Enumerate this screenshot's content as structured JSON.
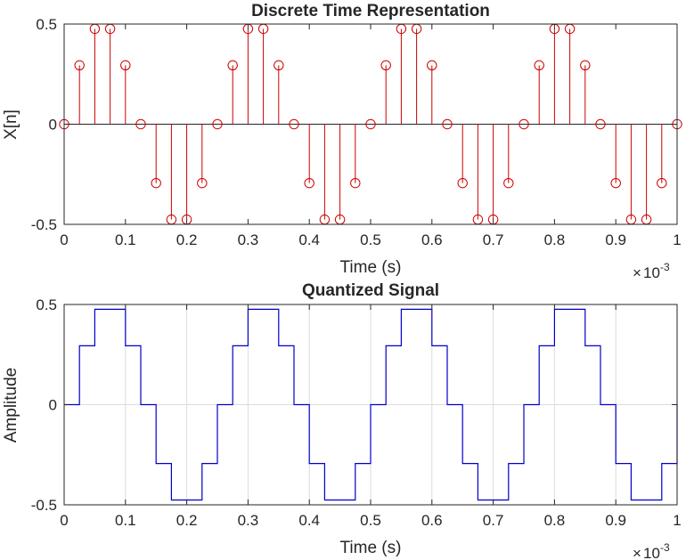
{
  "chart_data": [
    {
      "type": "stem",
      "title": "Discrete Time Representation",
      "xlabel": "Time (s)",
      "ylabel": "X[n]",
      "x_exponent": "10",
      "x_exponent_power": "-3",
      "x_exponent_prefix": "×",
      "xlim": [
        0,
        1
      ],
      "ylim": [
        -0.5,
        0.5
      ],
      "xticks": [
        "0",
        "0.1",
        "0.2",
        "0.3",
        "0.4",
        "0.5",
        "0.6",
        "0.7",
        "0.8",
        "0.9",
        "1"
      ],
      "yticks": [
        "-0.5",
        "0",
        "0.5"
      ],
      "grid": false,
      "color": "#cc0000",
      "x": [
        0,
        0.025,
        0.05,
        0.075,
        0.1,
        0.125,
        0.15,
        0.175,
        0.2,
        0.225,
        0.25,
        0.275,
        0.3,
        0.325,
        0.35,
        0.375,
        0.4,
        0.425,
        0.45,
        0.475,
        0.5,
        0.525,
        0.55,
        0.575,
        0.6,
        0.625,
        0.65,
        0.675,
        0.7,
        0.725,
        0.75,
        0.775,
        0.8,
        0.825,
        0.85,
        0.875,
        0.9,
        0.925,
        0.95,
        0.975,
        1.0
      ],
      "values": [
        0,
        0.294,
        0.476,
        0.476,
        0.294,
        0,
        -0.294,
        -0.476,
        -0.476,
        -0.294,
        0,
        0.294,
        0.476,
        0.476,
        0.294,
        0,
        -0.294,
        -0.476,
        -0.476,
        -0.294,
        0,
        0.294,
        0.476,
        0.476,
        0.294,
        0,
        -0.294,
        -0.476,
        -0.476,
        -0.294,
        0,
        0.294,
        0.476,
        0.476,
        0.294,
        0,
        -0.294,
        -0.476,
        -0.476,
        -0.294,
        0
      ]
    },
    {
      "type": "line",
      "title": "Quantized Signal",
      "xlabel": "Time (s)",
      "ylabel": "Amplitude",
      "x_exponent": "10",
      "x_exponent_power": "-3",
      "x_exponent_prefix": "×",
      "xlim": [
        0,
        1
      ],
      "ylim": [
        -0.5,
        0.5
      ],
      "xticks": [
        "0",
        "0.1",
        "0.2",
        "0.3",
        "0.4",
        "0.5",
        "0.6",
        "0.7",
        "0.8",
        "0.9",
        "1"
      ],
      "yticks": [
        "-0.5",
        "0",
        "0.5"
      ],
      "grid": true,
      "color": "#0000cc",
      "step": "post",
      "x": [
        0,
        0.025,
        0.05,
        0.075,
        0.1,
        0.125,
        0.15,
        0.175,
        0.2,
        0.225,
        0.25,
        0.275,
        0.3,
        0.325,
        0.35,
        0.375,
        0.4,
        0.425,
        0.45,
        0.475,
        0.5,
        0.525,
        0.55,
        0.575,
        0.6,
        0.625,
        0.65,
        0.675,
        0.7,
        0.725,
        0.75,
        0.775,
        0.8,
        0.825,
        0.85,
        0.875,
        0.9,
        0.925,
        0.95,
        0.975,
        1.0
      ],
      "values": [
        0,
        0.294,
        0.476,
        0.476,
        0.294,
        0,
        -0.294,
        -0.476,
        -0.476,
        -0.294,
        0,
        0.294,
        0.476,
        0.476,
        0.294,
        0,
        -0.294,
        -0.476,
        -0.476,
        -0.294,
        0,
        0.294,
        0.476,
        0.476,
        0.294,
        0,
        -0.294,
        -0.476,
        -0.476,
        -0.294,
        0,
        0.294,
        0.476,
        0.476,
        0.294,
        0,
        -0.294,
        -0.476,
        -0.476,
        -0.294,
        0
      ]
    }
  ]
}
